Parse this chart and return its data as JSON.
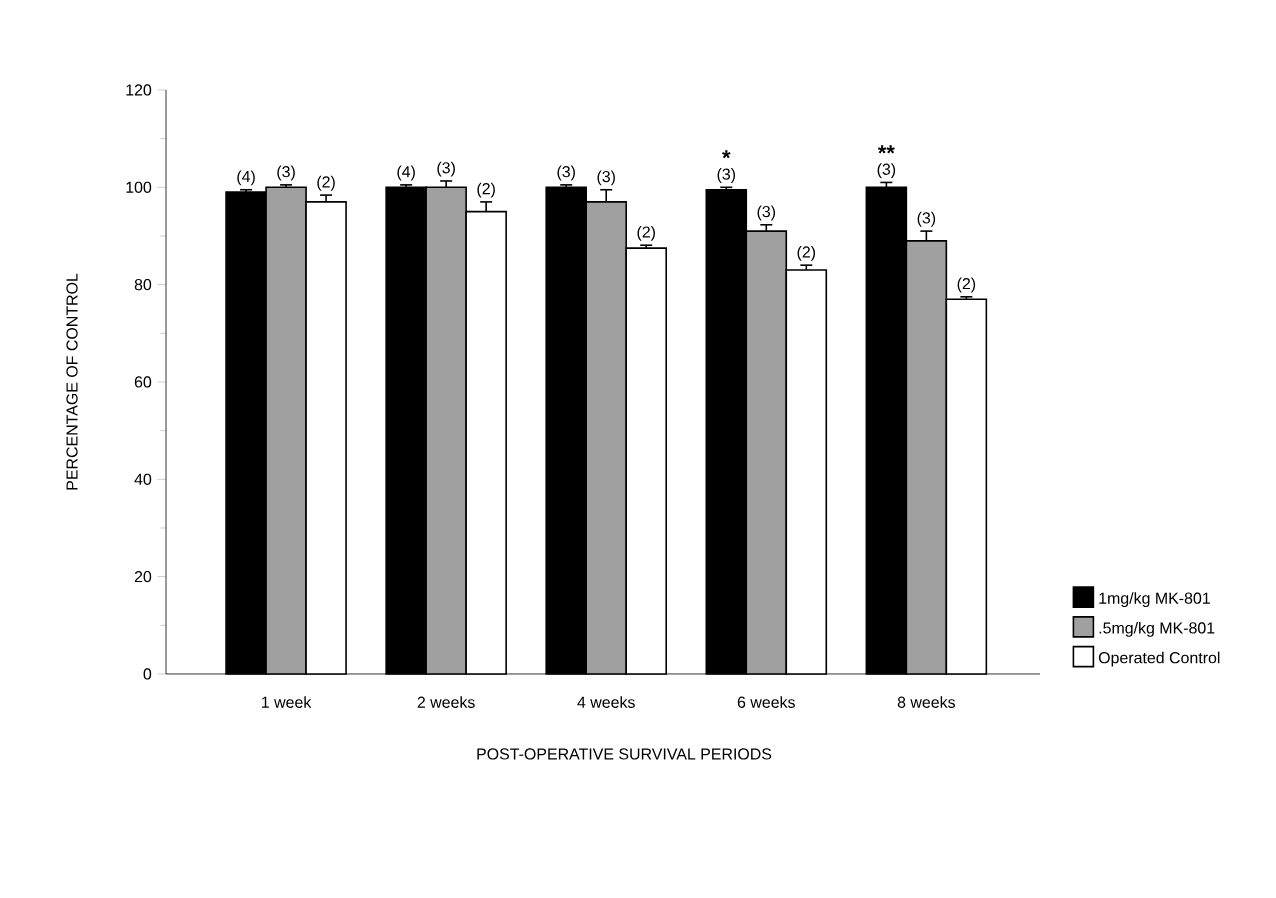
{
  "chart_data": {
    "type": "bar",
    "xlabel": "POST-OPERATIVE SURVIVAL PERIODS",
    "ylabel": "PERCENTAGE OF CONTROL",
    "categories": [
      "1 week",
      "2 weeks",
      "4 weeks",
      "6 weeks",
      "8 weeks"
    ],
    "series": [
      {
        "name": "1mg/kg MK-801",
        "color": "#000000",
        "values": [
          99,
          100,
          100,
          99.5,
          100
        ],
        "errors": [
          0.5,
          0.5,
          0.5,
          0.5,
          1
        ]
      },
      {
        "name": ".5mg/kg MK-801",
        "color": "#a0a0a0",
        "values": [
          100,
          100,
          97,
          91,
          89
        ],
        "errors": [
          0.5,
          1.3,
          2.5,
          1.3,
          2
        ]
      },
      {
        "name": "Operated Control",
        "color": "#ffffff",
        "values": [
          97,
          95,
          87.5,
          83,
          77
        ],
        "errors": [
          1.4,
          2,
          0.6,
          1,
          0.5
        ]
      }
    ],
    "annotations": [
      "(4)",
      "(3)",
      "(2)",
      "(4)",
      "(3)",
      "(2)",
      "(3)",
      "(3)",
      "(2)",
      "(3)",
      "(3)",
      "(2)",
      "(3)",
      "(3)",
      "(2)",
      "*",
      "**"
    ],
    "ylim": [
      0,
      120
    ],
    "yticks": [
      0,
      20,
      40,
      60,
      80,
      100,
      120
    ],
    "grid": false,
    "legend": "right"
  }
}
